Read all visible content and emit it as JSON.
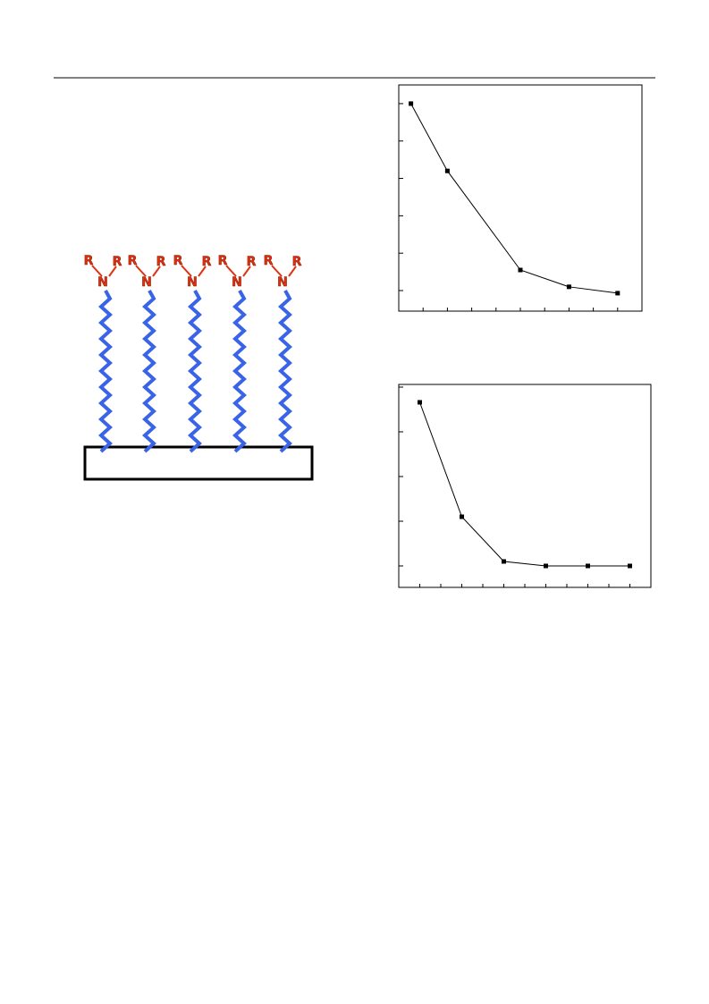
{
  "chart_data": [
    {
      "type": "line",
      "x": [
        0.5,
        2,
        5,
        7,
        9
      ],
      "values": [
        5,
        3.2,
        0.55,
        0.1,
        -0.07
      ],
      "color": "#000000",
      "xlim": [
        0,
        10
      ],
      "ylim": [
        -0.55,
        5.5
      ],
      "xticks": [
        0,
        1,
        2,
        3,
        4,
        5,
        6,
        7,
        8,
        9,
        10
      ],
      "yticks": [
        0,
        1,
        2,
        3,
        4,
        5
      ]
    },
    {
      "type": "line",
      "x": [
        0.5,
        1.5,
        2.5,
        3.5,
        4.5,
        5.5
      ],
      "values": [
        3.66,
        1.1,
        0.1,
        0,
        0,
        0
      ],
      "color": "#000000",
      "xlim": [
        0,
        6
      ],
      "ylim": [
        -0.48,
        4.06
      ],
      "xticks": [
        0,
        0.5,
        1,
        1.5,
        2,
        2.5,
        3,
        3.5,
        4,
        4.5,
        5,
        5.5,
        6
      ],
      "yticks": [
        0,
        1,
        2,
        3,
        4
      ]
    }
  ],
  "diagram": {
    "amine_groups": [
      {
        "n": "N",
        "r1": "R",
        "r2": "R"
      },
      {
        "n": "N",
        "r1": "R",
        "r2": "R"
      },
      {
        "n": "N",
        "r1": "R",
        "r2": "R"
      },
      {
        "n": "N",
        "r1": "R",
        "r2": "R"
      },
      {
        "n": "N",
        "r1": "R",
        "r2": "R"
      }
    ]
  }
}
